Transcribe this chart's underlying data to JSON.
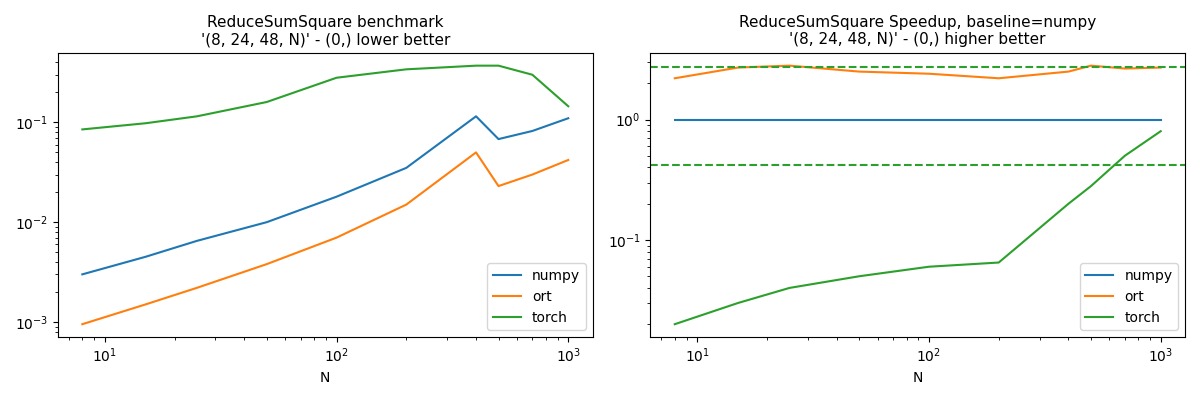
{
  "title1": "ReduceSumSquare benchmark\n'(8, 24, 48, N)' - (0,) lower better",
  "title2": "ReduceSumSquare Speedup, baseline=numpy\n'(8, 24, 48, N)' - (0,) higher better",
  "xlabel": "N",
  "colors": {
    "numpy": "#1f77b4",
    "ort": "#ff7f0e",
    "torch": "#2ca02c"
  },
  "N_values": [
    8,
    15,
    25,
    50,
    100,
    200,
    400,
    500,
    700,
    1000
  ],
  "bench_numpy": [
    0.003,
    0.0045,
    0.0065,
    0.01,
    0.018,
    0.035,
    0.115,
    0.068,
    0.082,
    0.11
  ],
  "bench_ort": [
    0.00095,
    0.0015,
    0.0022,
    0.0038,
    0.007,
    0.015,
    0.05,
    0.023,
    0.03,
    0.042
  ],
  "bench_torch": [
    0.085,
    0.098,
    0.115,
    0.16,
    0.28,
    0.34,
    0.37,
    0.37,
    0.3,
    0.145
  ],
  "speed_numpy": [
    1.0,
    1.0,
    1.0,
    1.0,
    1.0,
    1.0,
    1.0,
    1.0,
    1.0,
    1.0
  ],
  "speed_ort": [
    2.2,
    2.7,
    2.8,
    2.5,
    2.4,
    2.2,
    2.5,
    2.8,
    2.65,
    2.7
  ],
  "speed_torch": [
    0.02,
    0.03,
    0.04,
    0.05,
    0.06,
    0.065,
    0.2,
    0.28,
    0.5,
    0.8
  ],
  "dashed_upper": 2.75,
  "dashed_lower": 0.42,
  "legend_loc": "lower right"
}
